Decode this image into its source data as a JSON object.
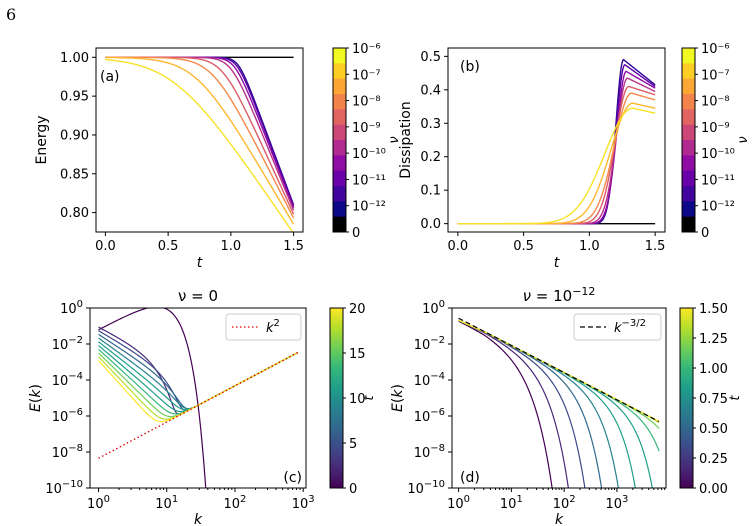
{
  "page_number": "6",
  "colors": {
    "plasma": [
      "#0d0887",
      "#41049d",
      "#6a00a8",
      "#8f0da4",
      "#b12a90",
      "#cc4778",
      "#e16462",
      "#f2844b",
      "#fca636",
      "#fcce25",
      "#f0f921"
    ],
    "viridis": [
      "#440154",
      "#482878",
      "#3e4989",
      "#31688e",
      "#26828e",
      "#1f9e89",
      "#35b779",
      "#6ece58",
      "#b5de2b",
      "#fde725"
    ]
  },
  "chart_data": [
    {
      "type": "line",
      "panel": "(a)",
      "title": "",
      "xlabel": "t",
      "ylabel": "Energy",
      "xlim": [
        -0.075,
        1.575
      ],
      "ylim": [
        0.775,
        1.012
      ],
      "xticks": [
        0.0,
        0.5,
        1.0,
        1.5
      ],
      "xtick_labels": [
        "0.0",
        "0.5",
        "1.0",
        "1.5"
      ],
      "yticks": [
        0.8,
        0.85,
        0.9,
        0.95,
        1.0
      ],
      "ytick_labels": [
        "0.80",
        "0.85",
        "0.90",
        "0.95",
        "1.00"
      ],
      "series_model": "E(t) = 1 - A*(softplus((t - t0)/w))*w, approximated from the curves",
      "series": [
        {
          "nu": "0",
          "color": "#000000",
          "x": [
            0.0,
            1.5
          ],
          "y": [
            1.0,
            1.0
          ]
        },
        {
          "nu": "1e-12",
          "color": "#2e0595",
          "t0": 1.06,
          "w": 0.035,
          "end": 0.81
        },
        {
          "nu": "3e-12",
          "color": "#5c01a6",
          "t0": 1.05,
          "w": 0.04,
          "end": 0.808
        },
        {
          "nu": "1e-11",
          "color": "#8b0aa5",
          "t0": 1.03,
          "w": 0.045,
          "end": 0.806
        },
        {
          "nu": "1e-10",
          "color": "#b83289",
          "t0": 1.0,
          "w": 0.055,
          "end": 0.803
        },
        {
          "nu": "1e-9",
          "color": "#db5c68",
          "t0": 0.93,
          "w": 0.075,
          "end": 0.798
        },
        {
          "nu": "1e-8",
          "color": "#f48849",
          "t0": 0.85,
          "w": 0.1,
          "end": 0.793
        },
        {
          "nu": "1e-7",
          "color": "#feb72d",
          "t0": 0.72,
          "w": 0.14,
          "end": 0.785
        },
        {
          "nu": "1e-6",
          "color": "#f7e225",
          "t0": 0.55,
          "w": 0.2,
          "end": 0.773
        }
      ]
    },
    {
      "type": "line",
      "panel": "(b)",
      "title": "",
      "xlabel": "t",
      "ylabel": "Dissipation",
      "xlim": [
        -0.075,
        1.575
      ],
      "ylim": [
        -0.025,
        0.525
      ],
      "xticks": [
        0.0,
        0.5,
        1.0,
        1.5
      ],
      "xtick_labels": [
        "0.0",
        "0.5",
        "1.0",
        "1.5"
      ],
      "yticks": [
        0.0,
        0.1,
        0.2,
        0.3,
        0.4,
        0.5
      ],
      "ytick_labels": [
        "0.0",
        "0.1",
        "0.2",
        "0.3",
        "0.4",
        "0.5"
      ],
      "series": [
        {
          "nu": "0",
          "color": "#000000",
          "peak": 0.0,
          "tpk": 1.25,
          "rise": 0.1,
          "end": 0.0
        },
        {
          "nu": "1e-12",
          "color": "#2e0595",
          "peak": 0.49,
          "tpk": 1.26,
          "rise": 0.09,
          "end": 0.415
        },
        {
          "nu": "3e-12",
          "color": "#5c01a6",
          "peak": 0.475,
          "tpk": 1.27,
          "rise": 0.1,
          "end": 0.41
        },
        {
          "nu": "1e-11",
          "color": "#8b0aa5",
          "peak": 0.455,
          "tpk": 1.28,
          "rise": 0.11,
          "end": 0.405
        },
        {
          "nu": "1e-10",
          "color": "#b83289",
          "peak": 0.435,
          "tpk": 1.29,
          "rise": 0.13,
          "end": 0.395
        },
        {
          "nu": "1e-9",
          "color": "#db5c68",
          "peak": 0.41,
          "tpk": 1.3,
          "rise": 0.16,
          "end": 0.385
        },
        {
          "nu": "1e-8",
          "color": "#f48849",
          "peak": 0.39,
          "tpk": 1.32,
          "rise": 0.2,
          "end": 0.37
        },
        {
          "nu": "1e-7",
          "color": "#feb72d",
          "peak": 0.36,
          "tpk": 1.33,
          "rise": 0.26,
          "end": 0.345
        },
        {
          "nu": "1e-6",
          "color": "#f7e225",
          "peak": 0.345,
          "tpk": 1.33,
          "rise": 0.33,
          "end": 0.33
        }
      ]
    },
    {
      "type": "line",
      "panel": "(c)",
      "title": "ν = 0",
      "xlabel": "k",
      "ylabel": "E(k)",
      "xscale": "log",
      "yscale": "log",
      "xlim": [
        0.75,
        1100
      ],
      "ylim": [
        1e-10,
        1
      ],
      "legend": {
        "label": "k²",
        "style": "dotted",
        "color": "#dd0000",
        "placement": "top-right"
      },
      "reference_line": {
        "x": [
          1,
          850
        ],
        "y": [
          4.5e-09,
          0.0035
        ]
      },
      "series_count": 11,
      "t_range": [
        0,
        20
      ]
    },
    {
      "type": "line",
      "panel": "(d)",
      "title": "ν = 10⁻¹²",
      "xlabel": "k",
      "ylabel": "E(k)",
      "xscale": "log",
      "yscale": "log",
      "xlim": [
        0.75,
        8500
      ],
      "ylim": [
        1e-10,
        1
      ],
      "legend": {
        "label": "k^{-3/2}",
        "style": "dashed",
        "color": "#000000",
        "placement": "top-right"
      },
      "reference_line": {
        "x": [
          1,
          6200
        ],
        "y": [
          0.27,
          5e-07
        ]
      },
      "series_count": 11,
      "t_range": [
        0,
        1.5
      ]
    }
  ],
  "colorbars": {
    "top_left": {
      "label": "ν",
      "ticks": [
        "10⁻⁶",
        "10⁻⁷",
        "10⁻⁸",
        "10⁻⁹",
        "10⁻¹⁰",
        "10⁻¹¹",
        "10⁻¹²",
        "0"
      ]
    },
    "top_right": {
      "label": "ν",
      "ticks": [
        "10⁻⁶",
        "10⁻⁷",
        "10⁻⁸",
        "10⁻⁹",
        "10⁻¹⁰",
        "10⁻¹¹",
        "10⁻¹²",
        "0"
      ]
    },
    "bottom_left": {
      "label": "t",
      "ticks": [
        "20",
        "15",
        "10",
        "5",
        "0"
      ]
    },
    "bottom_right": {
      "label": "t",
      "ticks": [
        "1.50",
        "1.25",
        "1.00",
        "0.75",
        "0.50",
        "0.25",
        "0.00"
      ]
    }
  }
}
